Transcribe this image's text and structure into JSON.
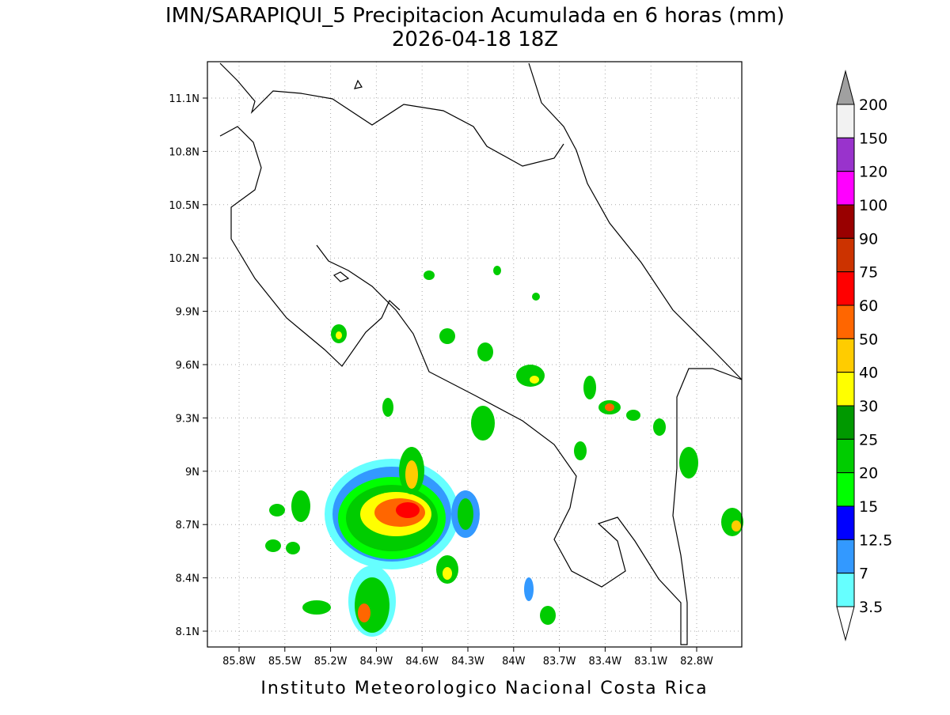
{
  "map": {
    "title": "IMN/SARAPIQUI_5 Precipitacion Acumulada en 6 horas (mm)",
    "subtitle": "2026-04-18 18Z",
    "lon_ticks": [
      "85.8W",
      "85.5W",
      "85.2W",
      "84.9W",
      "84.6W",
      "84.3W",
      "84W",
      "83.7W",
      "83.4W",
      "83.1W",
      "82.8W"
    ],
    "lat_ticks": [
      "11.1N",
      "10.8N",
      "10.5N",
      "10.2N",
      "9.9N",
      "9.6N",
      "9.3N",
      "9N",
      "8.7N",
      "8.4N",
      "8.1N"
    ],
    "colorbar": {
      "labels": [
        "200",
        "150",
        "120",
        "100",
        "90",
        "75",
        "60",
        "50",
        "40",
        "30",
        "25",
        "20",
        "15",
        "12.5",
        "7",
        "3.5"
      ],
      "colors": [
        "#f2f2f2",
        "#9933cc",
        "#ff00ff",
        "#990000",
        "#cc3300",
        "#ff0000",
        "#ff6600",
        "#ffcc00",
        "#ffff00",
        "#009900",
        "#00cc00",
        "#00ff00",
        "#0000ff",
        "#3399ff",
        "#66ffff"
      ],
      "over_color": "#a0a0a0",
      "under_color": "#ffffff"
    },
    "footer": "Instituto Meteorologico Nacional Costa Rica"
  }
}
